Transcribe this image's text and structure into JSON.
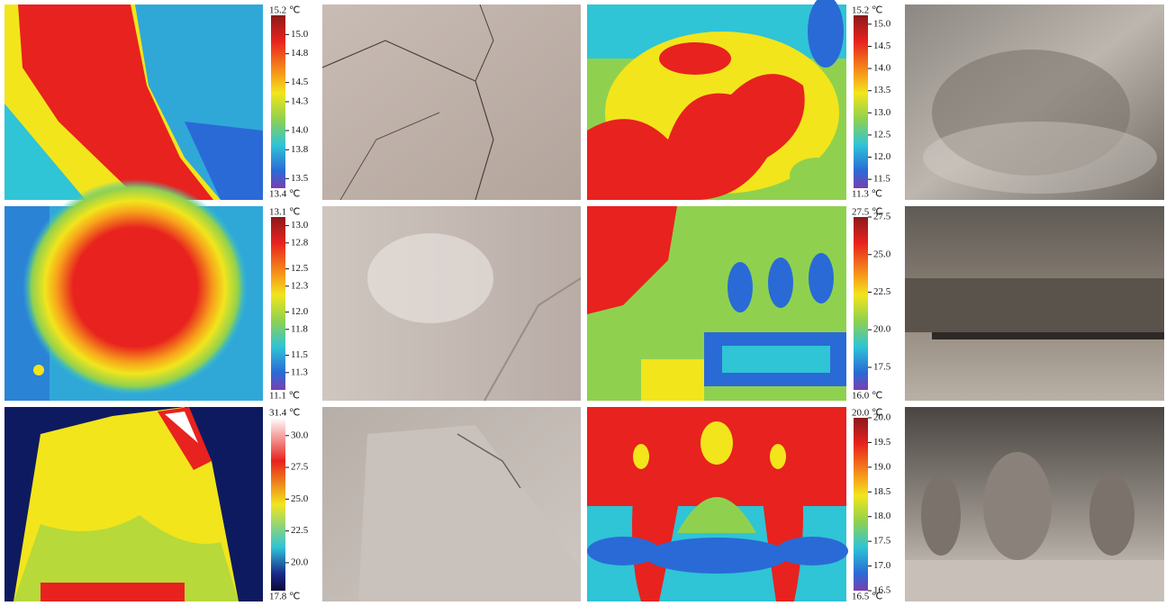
{
  "rows": [
    {
      "left": {
        "max_label": "15.2 ℃",
        "min_label": "13.4 ℃",
        "ticks": [
          "15.0",
          "14.8",
          "14.5",
          "14.3",
          "14.0",
          "13.8",
          "13.5"
        ]
      },
      "right": {
        "max_label": "15.2 ℃",
        "min_label": "11.3 ℃",
        "ticks": [
          "15.0",
          "14.5",
          "14.0",
          "13.5",
          "13.0",
          "12.5",
          "12.0",
          "11.5"
        ]
      }
    },
    {
      "left": {
        "max_label": "13.1 ℃",
        "min_label": "11.1 ℃",
        "ticks": [
          "13.0",
          "12.8",
          "12.5",
          "12.3",
          "12.0",
          "11.8",
          "11.5",
          "11.3"
        ]
      },
      "right": {
        "max_label": "27.5 ℃",
        "min_label": "16.0 ℃",
        "ticks": [
          "27.5",
          "25.0",
          "22.5",
          "20.0",
          "17.5"
        ]
      }
    },
    {
      "left": {
        "max_label": "31.4 ℃",
        "min_label": "17.8 ℃",
        "ticks": [
          "30.0",
          "27.5",
          "25.0",
          "22.5",
          "20.0"
        ]
      },
      "right": {
        "max_label": "20.0 ℃",
        "min_label": "16.5 ℃",
        "ticks": [
          "20.0",
          "19.5",
          "19.0",
          "18.5",
          "18.0",
          "17.5",
          "17.0",
          "16.5"
        ]
      }
    }
  ]
}
